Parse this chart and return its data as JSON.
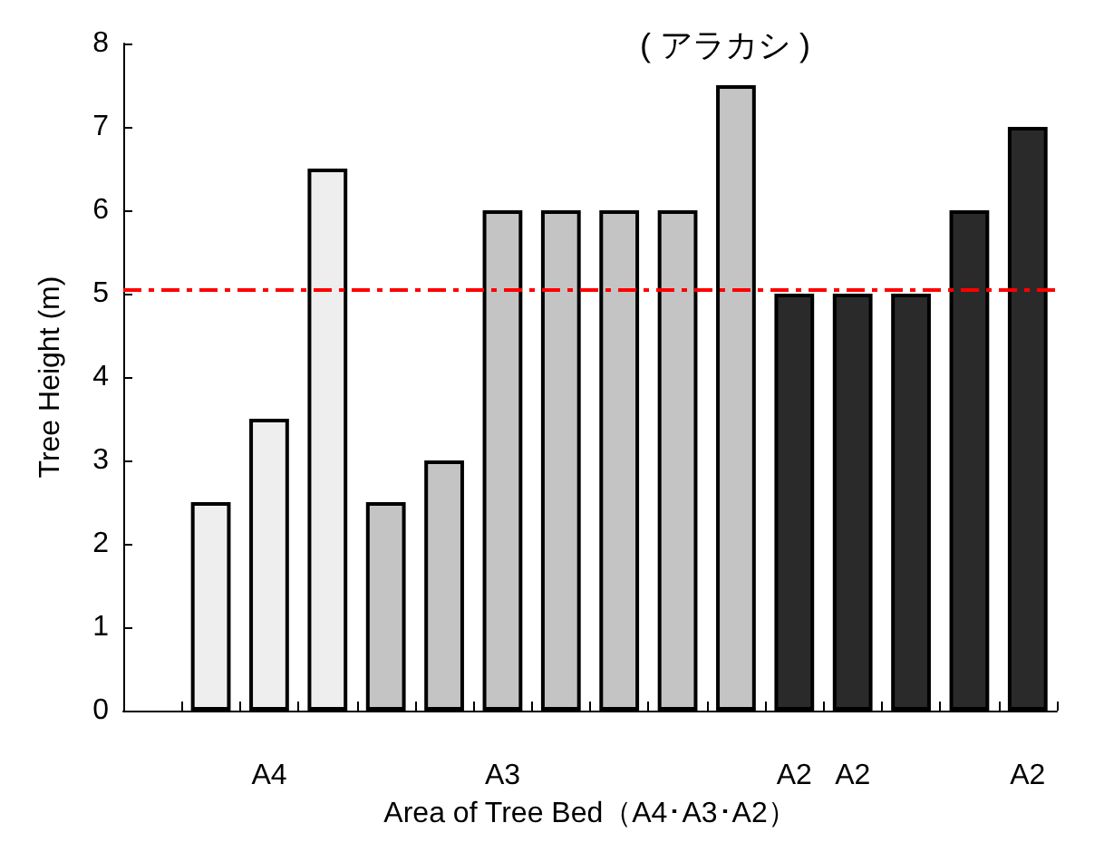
{
  "chart_data": {
    "type": "bar",
    "xlabel": "Area of Tree Bed（A4･A3･A2）",
    "ylabel": "Tree Height (m)",
    "categories": [
      null,
      null,
      "A4",
      null,
      null,
      null,
      "A3",
      null,
      null,
      null,
      null,
      "A2",
      "A2",
      null,
      null,
      "A2"
    ],
    "values": [
      null,
      2.5,
      3.5,
      6.5,
      2.5,
      3,
      6,
      6,
      6,
      6,
      7.5,
      5,
      5,
      5,
      6,
      7
    ],
    "colors": [
      "#ffffff",
      "#eeeeee",
      "#eeeeee",
      "#eeeeee",
      "#c4c4c4",
      "#c4c4c4",
      "#c4c4c4",
      "#c4c4c4",
      "#c4c4c4",
      "#c4c4c4",
      "#c4c4c4",
      "#2a2a2a",
      "#2a2a2a",
      "#2a2a2a",
      "#2a2a2a",
      "#2a2a2a"
    ],
    "ylim": [
      0,
      8
    ],
    "yticks": [
      0,
      1,
      2,
      3,
      4,
      5,
      6,
      7,
      8
    ],
    "grid": false,
    "ref_lines": [
      {
        "axis": "y",
        "value": 5.05,
        "color": "#ff0000",
        "line_style": "dashdot"
      }
    ],
    "annotations": [
      "( アラカシ )"
    ]
  }
}
